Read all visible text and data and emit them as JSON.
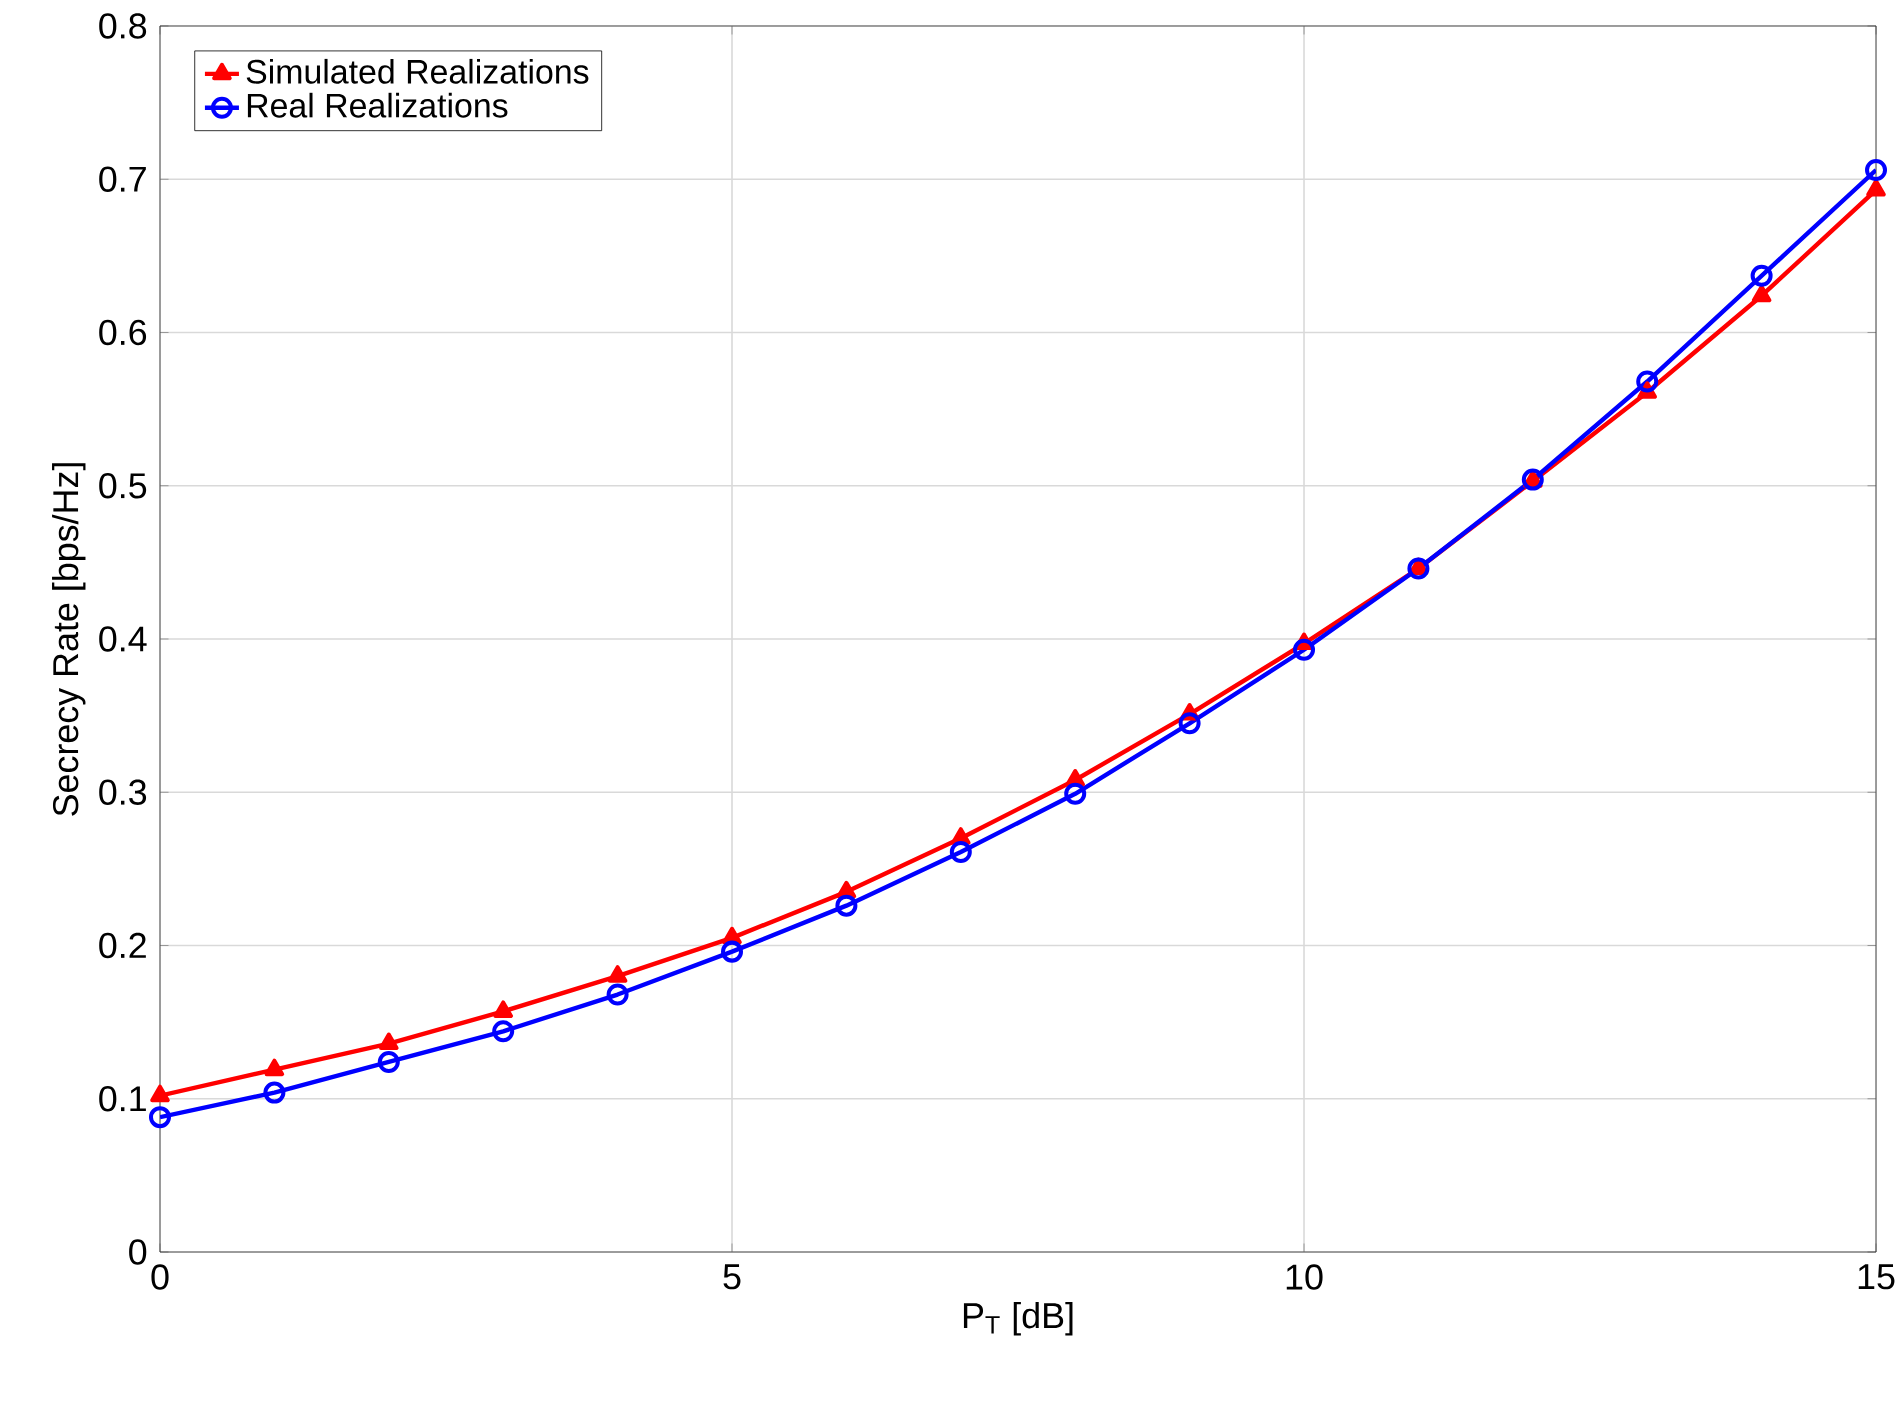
{
  "chart_data": {
    "type": "line",
    "xlabel": "P$_{T}$ [dB]",
    "ylabel": "Secrecy Rate [bps/Hz]",
    "x": [
      0,
      1,
      2,
      3,
      4,
      5,
      6,
      7,
      8,
      9,
      10,
      11,
      12,
      13,
      14,
      15
    ],
    "series": [
      {
        "name": "Simulated Realizations",
        "color": "#ff0000",
        "marker": "triangle",
        "values": [
          0.102,
          0.119,
          0.136,
          0.157,
          0.18,
          0.205,
          0.235,
          0.27,
          0.308,
          0.351,
          0.397,
          0.446,
          0.503,
          0.561,
          0.624,
          0.693
        ]
      },
      {
        "name": "Real Realizations",
        "color": "#0000ff",
        "marker": "circle",
        "values": [
          0.088,
          0.104,
          0.124,
          0.144,
          0.168,
          0.196,
          0.226,
          0.261,
          0.299,
          0.345,
          0.393,
          0.446,
          0.504,
          0.568,
          0.637,
          0.706
        ]
      }
    ],
    "xlim": [
      0,
      15
    ],
    "xticks": [
      0,
      5,
      10,
      15
    ],
    "ylim": [
      0,
      0.8
    ],
    "yticks": [
      0,
      0.1,
      0.2,
      0.3,
      0.4,
      0.5,
      0.6,
      0.7,
      0.8
    ],
    "grid": true,
    "legend": "top left",
    "line_style": "solid"
  }
}
